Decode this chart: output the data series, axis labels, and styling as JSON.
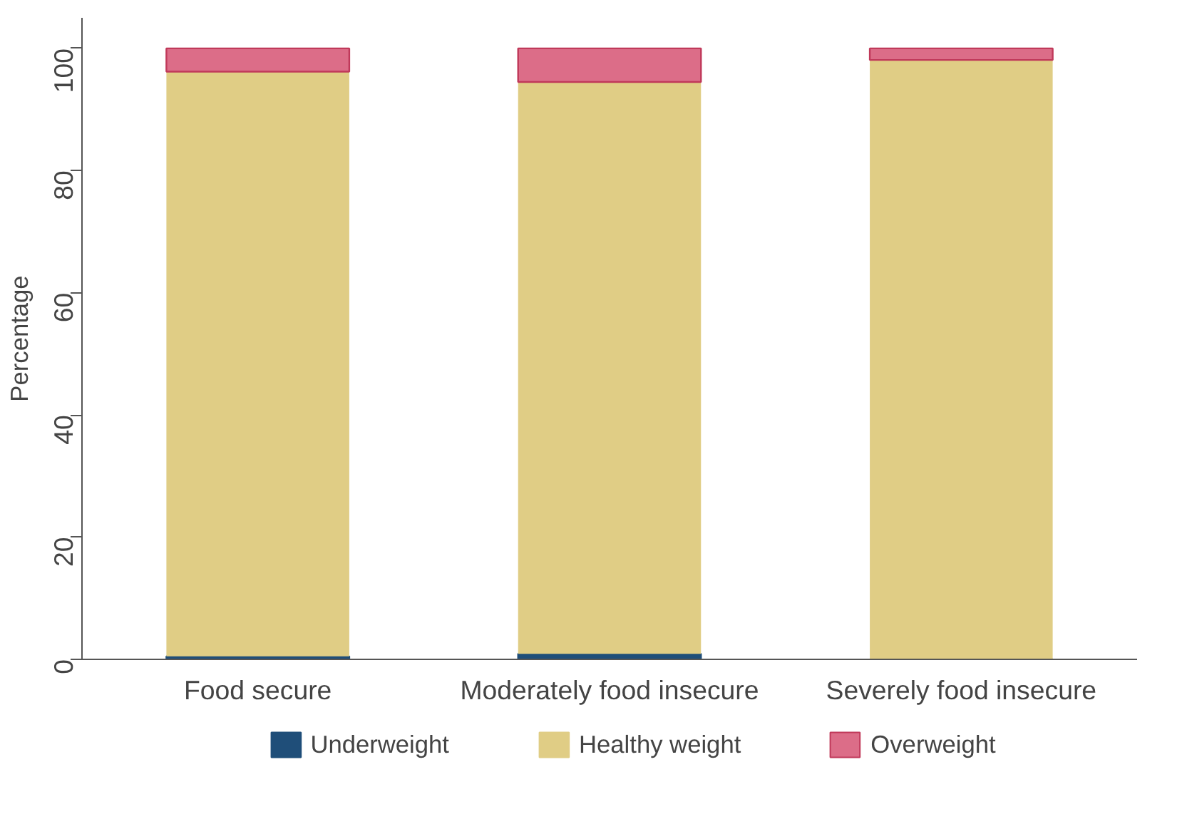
{
  "chart_data": {
    "type": "bar",
    "stacked": true,
    "ylabel": "Percentage",
    "categories": [
      "Food secure",
      "Moderately food insecure",
      "Severely food insecure"
    ],
    "series": [
      {
        "name": "Underweight",
        "color": "#1f4e79",
        "values": [
          0.5,
          0.9,
          0
        ]
      },
      {
        "name": "Healthy weight",
        "color": "#e0cd85",
        "values": [
          95.7,
          93.6,
          98.1
        ]
      },
      {
        "name": "Overweight",
        "color": "#dc6d88",
        "values": [
          3.8,
          5.5,
          1.9
        ]
      }
    ],
    "ylim": [
      0,
      105
    ],
    "yticks": [
      0,
      20,
      40,
      60,
      80,
      100
    ],
    "grid": false,
    "legend": "bottom"
  }
}
